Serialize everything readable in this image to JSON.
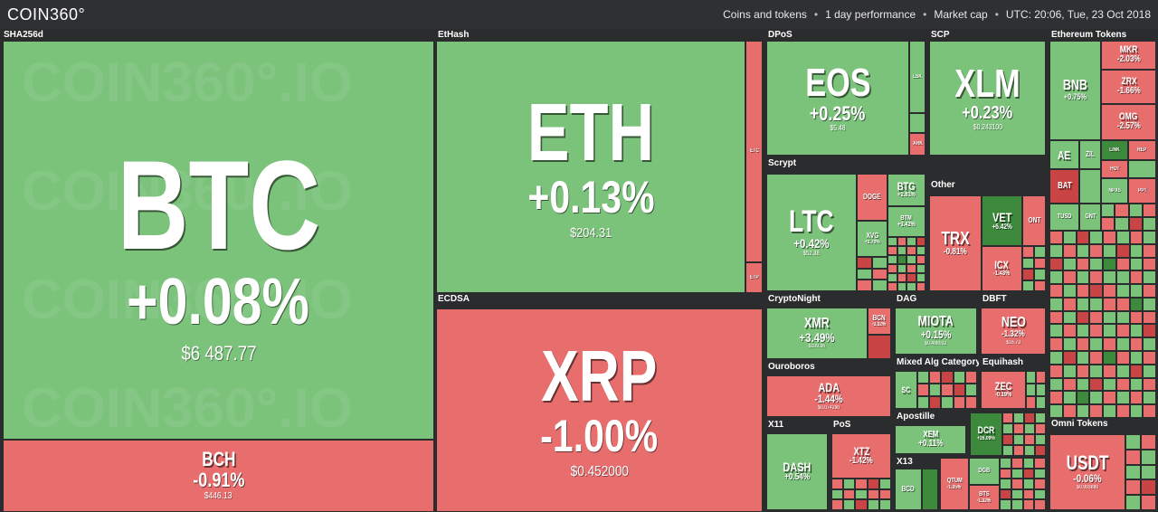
{
  "header": {
    "logo": "COIN360°",
    "filters": [
      "Coins and tokens",
      "1 day performance",
      "Market cap"
    ],
    "utc": "UTC: 20:06, Tue, 23 Oct 2018"
  },
  "watermark": "COIN360°.IO",
  "groups": {
    "sha256d": "SHA256d",
    "ethash": "EtHash",
    "ecdsa": "ECDSA",
    "dpos": "DPoS",
    "scp": "SCP",
    "ethereum_tokens": "Ethereum Tokens",
    "scrypt": "Scrypt",
    "other": "Other",
    "cryptonight": "CryptoNight",
    "dag": "DAG",
    "dbft": "DBFT",
    "ouroboros": "Ouroboros",
    "mixed_alg": "Mixed Alg Category",
    "equihash": "Equihash",
    "x11": "X11",
    "pos": "PoS",
    "apostille": "Apostille",
    "x13": "X13",
    "omni_tokens": "Omni Tokens"
  },
  "coins": {
    "btc": {
      "symbol": "BTC",
      "change": "+0.08%",
      "price": "$6 487.77"
    },
    "bch": {
      "symbol": "BCH",
      "change": "-0.91%",
      "price": "$446.13"
    },
    "eth": {
      "symbol": "ETH",
      "change": "+0.13%",
      "price": "$204.31"
    },
    "etc": {
      "symbol": "ETC"
    },
    "etp": {
      "symbol": "ETP"
    },
    "xrp": {
      "symbol": "XRP",
      "change": "-1.00%",
      "price": "$0.452000"
    },
    "eos": {
      "symbol": "EOS",
      "change": "+0.25%",
      "price": "$5.48"
    },
    "lsk": {
      "symbol": "LSK"
    },
    "ark": {
      "symbol": "ARK"
    },
    "xlm": {
      "symbol": "XLM",
      "change": "+0.23%",
      "price": "$0.243100"
    },
    "bnb": {
      "symbol": "BNB",
      "change": "+0.75%"
    },
    "mkr": {
      "symbol": "MKR",
      "change": "-2.03%"
    },
    "zrx": {
      "symbol": "ZRX",
      "change": "-1.66%"
    },
    "omg": {
      "symbol": "OMG",
      "change": "-2.57%"
    },
    "ae": {
      "symbol": "AE"
    },
    "zil": {
      "symbol": "ZIL"
    },
    "bat": {
      "symbol": "BAT"
    },
    "link": {
      "symbol": "LINK"
    },
    "rep": {
      "symbol": "REP"
    },
    "hot": {
      "symbol": "HOT"
    },
    "ppt": {
      "symbol": "PPT"
    },
    "npxs": {
      "symbol": "NPXS"
    },
    "tusd": {
      "symbol": "TUSD"
    },
    "gnt": {
      "symbol": "GNT"
    },
    "ltc": {
      "symbol": "LTC",
      "change": "+0.42%",
      "price": "$52.38"
    },
    "doge": {
      "symbol": "DOGE"
    },
    "btg": {
      "symbol": "BTG",
      "change": "+2.81%"
    },
    "btm": {
      "symbol": "BTM",
      "change": "+3.42%"
    },
    "xvg": {
      "symbol": "XVG",
      "change": "+2.70%"
    },
    "trx": {
      "symbol": "TRX",
      "change": "-0.81%"
    },
    "vet": {
      "symbol": "VET",
      "change": "+6.42%"
    },
    "icx": {
      "symbol": "ICX",
      "change": "-1.43%"
    },
    "ont": {
      "symbol": "ONT"
    },
    "xmr": {
      "symbol": "XMR",
      "change": "+3.49%",
      "price": "$109.36"
    },
    "bcn": {
      "symbol": "BCN",
      "change": "-3.32%"
    },
    "miota": {
      "symbol": "MIOTA",
      "change": "+0.15%",
      "price": "$0.498032"
    },
    "neo": {
      "symbol": "NEO",
      "change": "-1.32%",
      "price": "$16.73"
    },
    "ada": {
      "symbol": "ADA",
      "change": "-1.44%",
      "price": "$0.074290"
    },
    "sc": {
      "symbol": "SC"
    },
    "zec": {
      "symbol": "ZEC",
      "change": "-0.19%"
    },
    "dash": {
      "symbol": "DASH",
      "change": "+0.54%"
    },
    "xtz": {
      "symbol": "XTZ",
      "change": "-1.42%"
    },
    "xem": {
      "symbol": "XEM",
      "change": "+0.11%"
    },
    "dcr": {
      "symbol": "DCR",
      "change": "+26.09%"
    },
    "bcd": {
      "symbol": "BCD"
    },
    "qtum": {
      "symbol": "QTUM",
      "change": "-1.35%"
    },
    "dgb": {
      "symbol": "DGB"
    },
    "bts": {
      "symbol": "BTS",
      "change": "-1.32%"
    },
    "usdt": {
      "symbol": "USDT",
      "change": "-0.06%",
      "price": "$0.993880"
    }
  },
  "colors": {
    "positive": "#7bc27b",
    "negative": "#e86e6e",
    "strong_positive": "#3d8a3d",
    "strong_negative": "#c94545",
    "background": "#2b2c2e"
  }
}
